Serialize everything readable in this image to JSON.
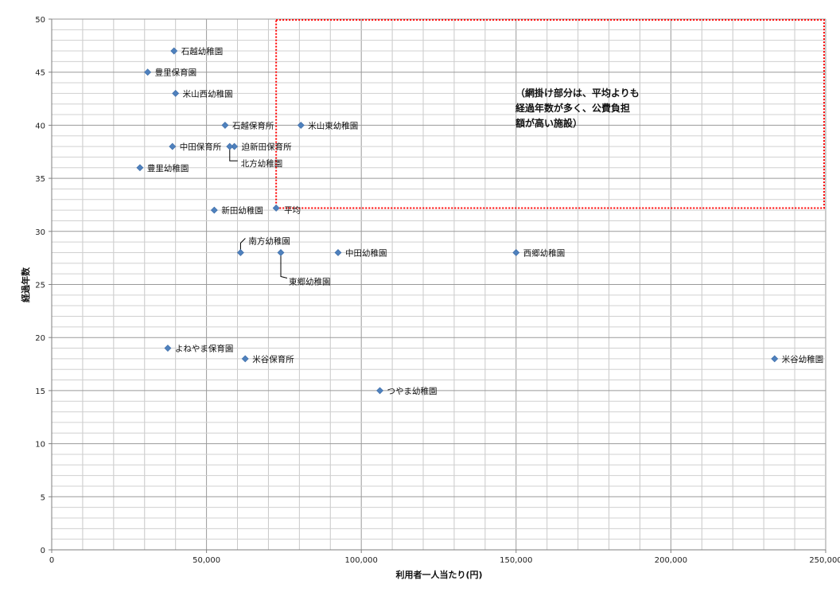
{
  "chart_data": {
    "type": "scatter",
    "title": "",
    "xlabel": "利用者一人当たり(円)",
    "ylabel": "経過年数",
    "xlim": [
      0,
      250000
    ],
    "ylim": [
      0,
      50
    ],
    "x_ticks": [
      "0",
      "50,000",
      "100,000",
      "150,000",
      "200,000",
      "250,000"
    ],
    "y_ticks": [
      "0",
      "5",
      "10",
      "15",
      "20",
      "25",
      "30",
      "35",
      "40",
      "45",
      "50"
    ],
    "grid": true,
    "marker_color": "#4f81bd",
    "points": [
      {
        "label": "石越幼稚園",
        "x": 39500,
        "y": 47
      },
      {
        "label": "豊里保育園",
        "x": 31000,
        "y": 45
      },
      {
        "label": "米山西幼稚園",
        "x": 40000,
        "y": 43
      },
      {
        "label": "石越保育所",
        "x": 56000,
        "y": 40
      },
      {
        "label": "米山東幼稚園",
        "x": 80500,
        "y": 40
      },
      {
        "label": "中田保育所",
        "x": 39000,
        "y": 38
      },
      {
        "label": "迫新田保育所",
        "x": 59000,
        "y": 38
      },
      {
        "label": "北方幼稚園",
        "x": 57500,
        "y": 38
      },
      {
        "label": "豊里幼稚園",
        "x": 28500,
        "y": 36
      },
      {
        "label": "新田幼稚園",
        "x": 52500,
        "y": 32
      },
      {
        "label": "平均",
        "x": 72500,
        "y": 32.2
      },
      {
        "label": "南方幼稚園",
        "x": 61000,
        "y": 28
      },
      {
        "label": "東郷幼稚園",
        "x": 74000,
        "y": 28
      },
      {
        "label": "中田幼稚園",
        "x": 92500,
        "y": 28
      },
      {
        "label": "西郷幼稚園",
        "x": 150000,
        "y": 28
      },
      {
        "label": "よねやま保育園",
        "x": 37500,
        "y": 19
      },
      {
        "label": "米谷保育所",
        "x": 62500,
        "y": 18
      },
      {
        "label": "米谷幼稚園",
        "x": 233500,
        "y": 18
      },
      {
        "label": "つやま幼稚園",
        "x": 106000,
        "y": 15
      }
    ],
    "highlight_region": {
      "x_from": 72500,
      "x_to": 250000,
      "y_from": 32.2,
      "y_to": 50,
      "color": "#ff0000"
    },
    "annotation": {
      "lines": [
        "（網掛け部分は、平均よりも",
        "経過年数が多く、公費負担",
        "額が高い施設）"
      ]
    }
  }
}
